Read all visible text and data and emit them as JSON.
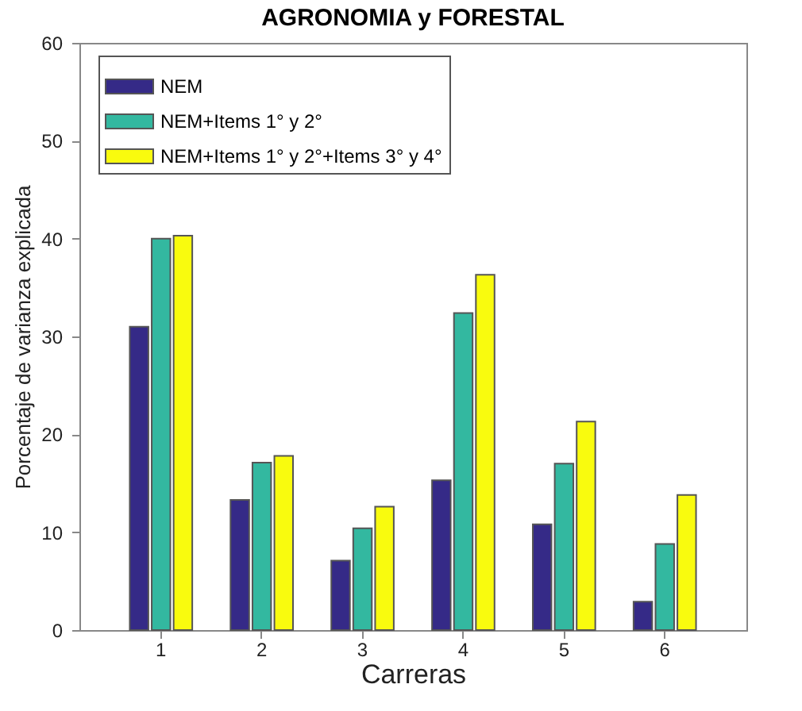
{
  "chart_data": {
    "type": "bar",
    "title": "AGRONOMIA y FORESTAL",
    "xlabel": "Carreras",
    "ylabel": "Porcentaje de varianza explicada",
    "categories": [
      "1",
      "2",
      "3",
      "4",
      "5",
      "6"
    ],
    "series": [
      {
        "name": "NEM",
        "color": "#352a87",
        "values": [
          31,
          13.3,
          7.1,
          15.3,
          10.8,
          2.9
        ]
      },
      {
        "name": "NEM+Items 1° y 2°",
        "color": "#33b8a0",
        "values": [
          40,
          17.1,
          10.4,
          32.4,
          17,
          8.8
        ]
      },
      {
        "name": "NEM+Items 1° y 2°+Items 3° y 4°",
        "color": "#f9fb0e",
        "values": [
          40.3,
          17.8,
          12.6,
          36.3,
          21.3,
          13.8
        ]
      }
    ],
    "ylim": [
      0,
      60
    ],
    "yticks": [
      0,
      10,
      20,
      30,
      40,
      50,
      60
    ],
    "grid": false,
    "legend": "top left"
  }
}
